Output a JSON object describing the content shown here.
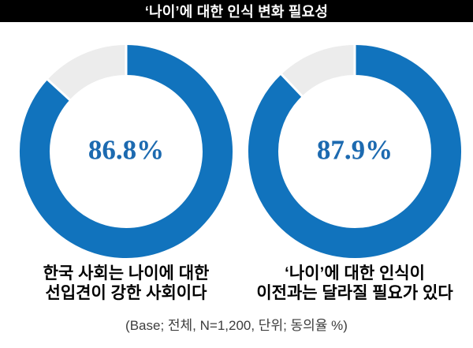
{
  "header": {
    "title": "‘나이’에 대한 인식 변화 필요성"
  },
  "footnote": {
    "text": "(Base; 전체, N=1,200, 단위; 동의율 %)"
  },
  "colors": {
    "accent_blue": "#1173bd",
    "track_gray": "#ececec",
    "separator_white": "#ffffff",
    "value_text_blue": "#1c6ab0",
    "title_bg": "#000000",
    "title_text": "#ffffff"
  },
  "chart_data": {
    "type": "pie",
    "subtype": "donut",
    "title": "‘나이’에 대한 인식 변화 필요성",
    "unit": "동의율 %",
    "base": "전체, N=1,200",
    "start_angle_deg": 0,
    "direction": "clockwise",
    "series": [
      {
        "label": "한국 사회는 나이에 대한 선입견이 강한 사회이다",
        "caption_lines": [
          "한국 사회는 나이에 대한",
          "선입견이 강한 사회이다"
        ],
        "value": 86.8,
        "remainder": 13.2,
        "display": "86.8%"
      },
      {
        "label": "‘나이’에 대한 인식이 이전과는 달라질 필요가 있다",
        "caption_lines": [
          "‘나이’에 대한 인식이",
          "이전과는 달라질 필요가 있다"
        ],
        "value": 87.9,
        "remainder": 12.1,
        "display": "87.9%"
      }
    ]
  }
}
